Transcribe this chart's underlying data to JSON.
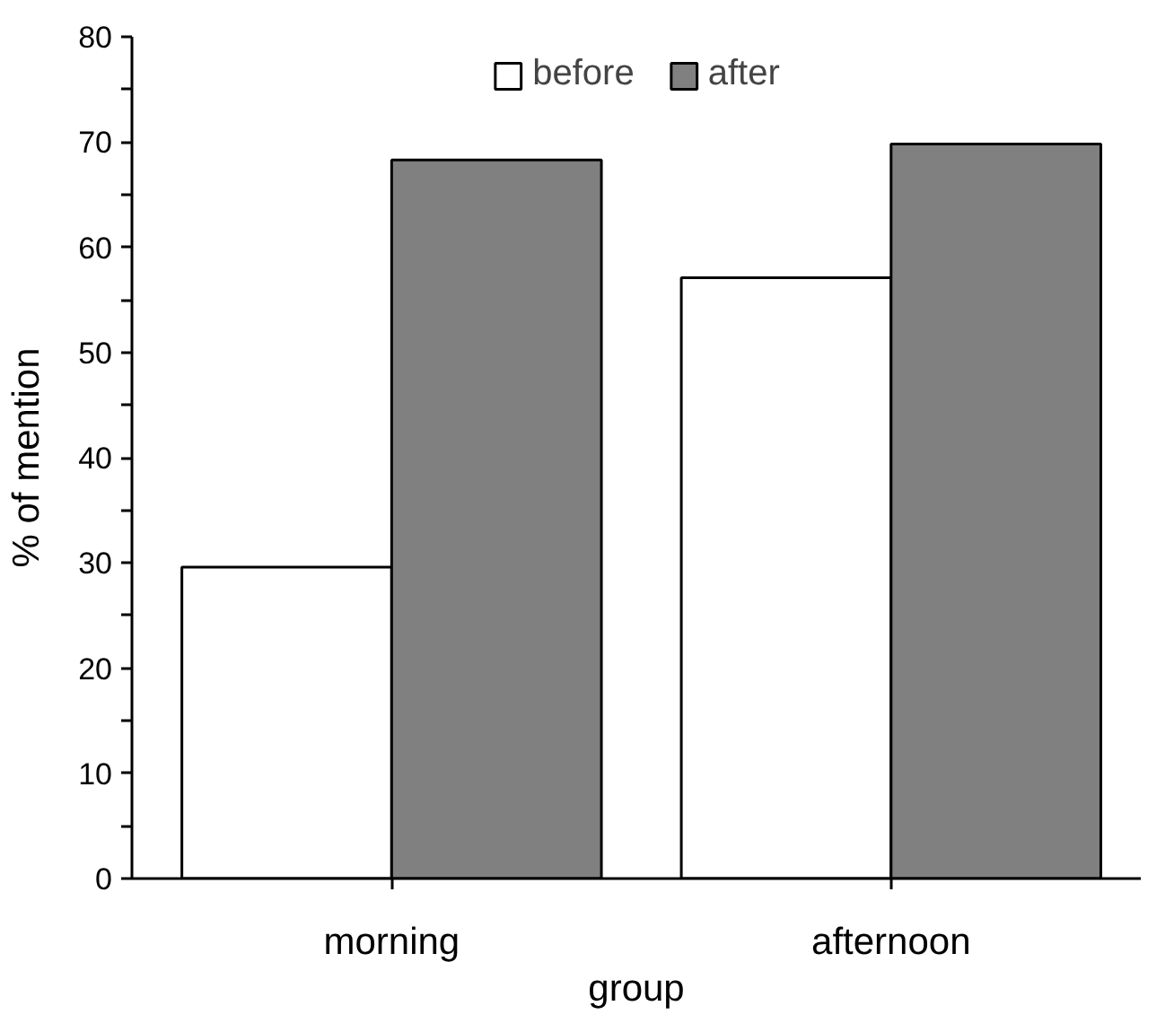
{
  "chart_data": {
    "type": "bar",
    "xlabel": "group",
    "ylabel": "% of mention",
    "categories": [
      "morning",
      "afternoon"
    ],
    "series": [
      {
        "name": "before",
        "color": "#ffffff",
        "values": [
          29.6,
          57.1
        ]
      },
      {
        "name": "after",
        "color": "#808080",
        "values": [
          68.3,
          69.8
        ]
      }
    ],
    "ylim": [
      0,
      80
    ],
    "yticks": [
      0,
      {
        "value": 5,
        "label": null
      },
      10,
      {
        "value": 15,
        "label": null
      },
      20,
      {
        "value": 25,
        "label": null
      },
      30,
      {
        "value": 35,
        "label": null
      },
      40,
      {
        "value": 45,
        "label": null
      },
      50,
      {
        "value": 55,
        "label": null
      },
      60,
      {
        "value": 65,
        "label": null
      },
      70,
      {
        "value": 75,
        "label": null
      },
      80
    ],
    "grid": false,
    "legend": "top"
  }
}
